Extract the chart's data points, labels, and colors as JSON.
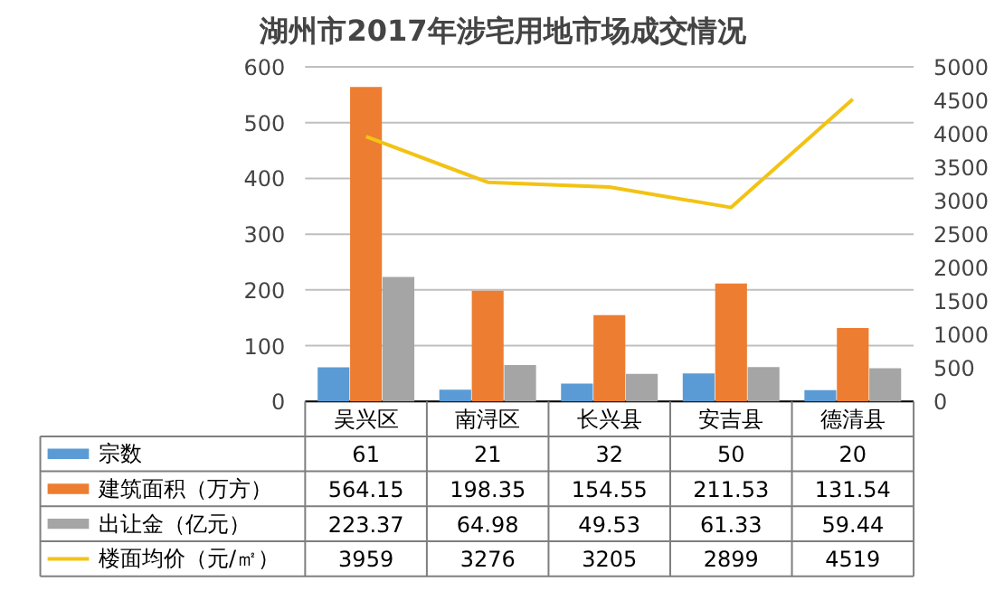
{
  "chart_data": {
    "type": "bar",
    "title": "湖州市2017年涉宅用地市场成交情况",
    "categories": [
      "吴兴区",
      "南浔区",
      "长兴县",
      "安吉县",
      "德清县"
    ],
    "series": [
      {
        "name": "宗数",
        "color": "#5b9bd5",
        "values": [
          61,
          21,
          32,
          50,
          20
        ]
      },
      {
        "name": "建筑面积（万方）",
        "color": "#ed7d31",
        "values": [
          564.15,
          198.35,
          154.55,
          211.53,
          131.54
        ]
      },
      {
        "name": "出让金（亿元）",
        "color": "#a5a5a5",
        "values": [
          223.37,
          64.98,
          49.53,
          61.33,
          59.44
        ]
      },
      {
        "name": "楼面均价（元/㎡）",
        "color": "#f2c314",
        "type": "line",
        "axis": "y2",
        "values": [
          3959,
          3276,
          3205,
          2899,
          4519
        ]
      }
    ],
    "ylim": [
      0,
      600
    ],
    "yticks": [
      0,
      100,
      200,
      300,
      400,
      500,
      600
    ],
    "y2lim": [
      0,
      5000
    ],
    "y2ticks": [
      0,
      500,
      1000,
      1500,
      2000,
      2500,
      3000,
      3500,
      4000,
      4500,
      5000
    ],
    "grid": "y",
    "legend": "bottom",
    "data_labels": true
  }
}
